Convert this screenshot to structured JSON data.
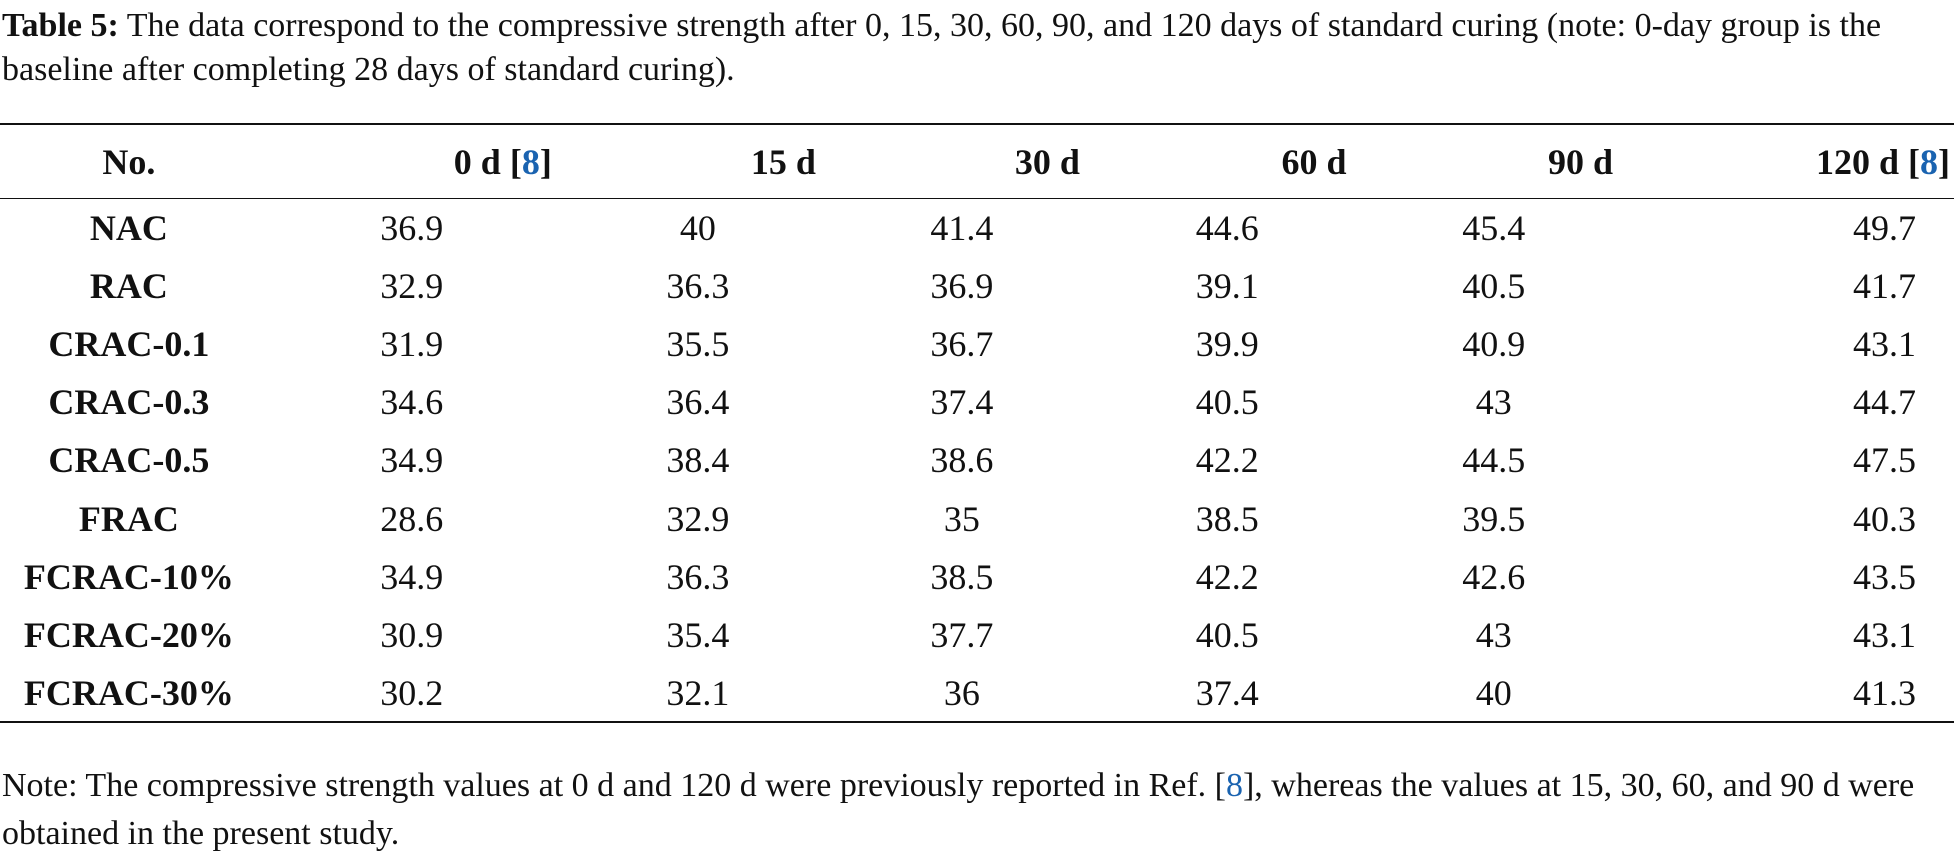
{
  "caption": {
    "label": "Table 5:",
    "text": " The data correspond to the compressive strength after 0, 15, 30, 60, 90, and 120 days of standard curing (note: 0-day group is the baseline after completing 28 days of standard curing)."
  },
  "table": {
    "headers": [
      {
        "text": "No.",
        "ref": ""
      },
      {
        "text": "0 d",
        "ref": "8"
      },
      {
        "text": "15 d",
        "ref": ""
      },
      {
        "text": "30 d",
        "ref": ""
      },
      {
        "text": "60 d",
        "ref": ""
      },
      {
        "text": "90 d",
        "ref": ""
      },
      {
        "text": "120 d",
        "ref": "8"
      }
    ],
    "rows": [
      {
        "label": "NAC",
        "values": [
          "36.9",
          "40",
          "41.4",
          "44.6",
          "45.4",
          "49.7"
        ]
      },
      {
        "label": "RAC",
        "values": [
          "32.9",
          "36.3",
          "36.9",
          "39.1",
          "40.5",
          "41.7"
        ]
      },
      {
        "label": "CRAC-0.1",
        "values": [
          "31.9",
          "35.5",
          "36.7",
          "39.9",
          "40.9",
          "43.1"
        ]
      },
      {
        "label": "CRAC-0.3",
        "values": [
          "34.6",
          "36.4",
          "37.4",
          "40.5",
          "43",
          "44.7"
        ]
      },
      {
        "label": "CRAC-0.5",
        "values": [
          "34.9",
          "38.4",
          "38.6",
          "42.2",
          "44.5",
          "47.5"
        ]
      },
      {
        "label": "FRAC",
        "values": [
          "28.6",
          "32.9",
          "35",
          "38.5",
          "39.5",
          "40.3"
        ]
      },
      {
        "label": "FCRAC-10%",
        "values": [
          "34.9",
          "36.3",
          "38.5",
          "42.2",
          "42.6",
          "43.5"
        ]
      },
      {
        "label": "FCRAC-20%",
        "values": [
          "30.9",
          "35.4",
          "37.7",
          "40.5",
          "43",
          "43.1"
        ]
      },
      {
        "label": "FCRAC-30%",
        "values": [
          "30.2",
          "32.1",
          "36",
          "37.4",
          "40",
          "41.3"
        ]
      }
    ]
  },
  "note": {
    "before": "Note: The compressive strength values at 0 d and 120 d were previously reported in Ref. [",
    "ref": "8",
    "after": "], whereas the values at 15, 30, 60, and 90 d were obtained in the present study."
  },
  "colors": {
    "text": "#111111",
    "reference_link": "#1a63b0"
  }
}
